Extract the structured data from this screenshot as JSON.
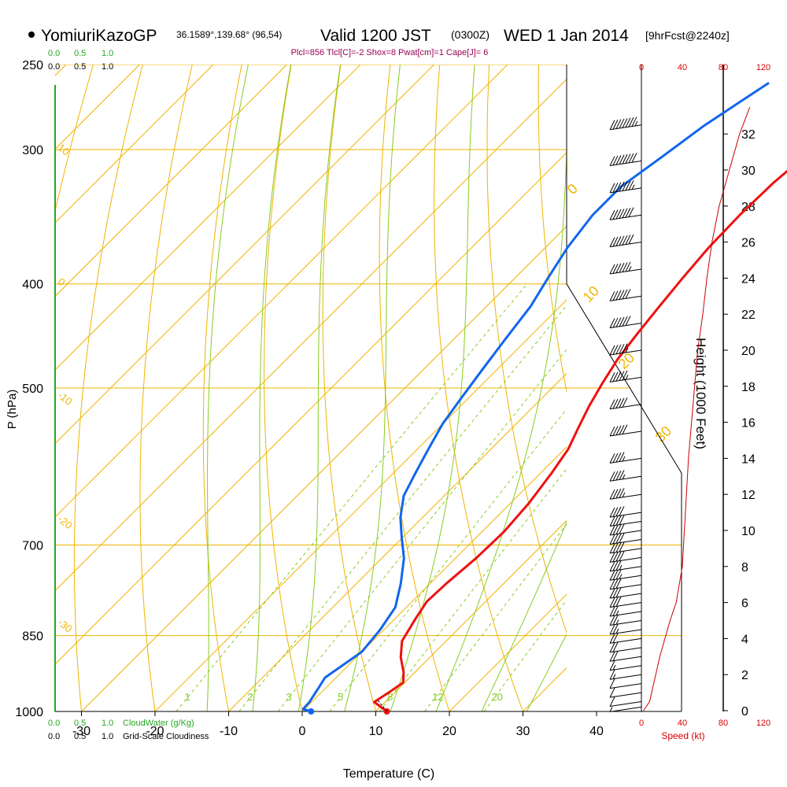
{
  "header": {
    "station": "YomiuriKazoGP",
    "location": "36.1589°,139.68° (96,54)",
    "valid": "Valid 1200 JST",
    "utc": "(0300Z)",
    "date": "WED 1 Jan 2014",
    "forecast": "[9hrFcst@2240z]",
    "indices": "Plcl=856 Tlcl[C]=-2 Shox=8 Pwat[cm]=1 Cape[J]= 6"
  },
  "cloud_scale": {
    "ticks": [
      "0.0",
      "0.5",
      "1.0"
    ],
    "water_label": "CloudWater (g/Kg)",
    "cloudiness_label": "Grid-Scale Cloudiness"
  },
  "speed_scale": {
    "ticks": [
      "0",
      "40",
      "80",
      "120"
    ],
    "label": "Speed (kt)"
  },
  "colors": {
    "temperature": "#ee1111",
    "dewpoint": "#1166ee",
    "isotherm": "#f0b400",
    "dry_adiabat": "#f0b400",
    "moist_adiabat": "#88cc22",
    "mixing_ratio": "#88cc22",
    "cloud": "#22aa22",
    "speed": "#cc0000"
  },
  "chart_data": {
    "type": "line",
    "title": "Valid 1200 JST (0300Z) WED 1 Jan 2014",
    "xlabel": "Temperature (C)",
    "ylabel": "P (hPa)",
    "right_ylabel": "Height (1000 Feet)",
    "xlim": [
      -35,
      35
    ],
    "pressure_range": [
      1000,
      250
    ],
    "x_ticks": [
      "-30",
      "-20",
      "-10",
      "0",
      "10",
      "20",
      "30",
      "40"
    ],
    "pressure_ticks": [
      "250",
      "300",
      "400",
      "500",
      "700",
      "850",
      "1000"
    ],
    "height_ticks": [
      "0",
      "2",
      "4",
      "6",
      "8",
      "10",
      "12",
      "14",
      "16",
      "18",
      "20",
      "22",
      "24",
      "26",
      "28",
      "30",
      "32"
    ],
    "dry_adiabat_labels": [
      "10",
      "0",
      "-10",
      "-20",
      "-30"
    ],
    "dry_adiabat_labels_right": [
      "0",
      "10",
      "20",
      "30"
    ],
    "mixing_ratio_labels": [
      "1",
      "2",
      "3",
      "5",
      "8",
      "12",
      "20"
    ],
    "series": [
      {
        "name": "Temperature",
        "points": [
          [
            11.5,
            1000
          ],
          [
            8.5,
            980
          ],
          [
            9.2,
            960
          ],
          [
            9.8,
            940
          ],
          [
            8.5,
            920
          ],
          [
            6,
            890
          ],
          [
            4,
            860
          ],
          [
            2.8,
            820
          ],
          [
            2,
            790
          ],
          [
            2.2,
            760
          ],
          [
            2.8,
            720
          ],
          [
            3,
            680
          ],
          [
            2.5,
            640
          ],
          [
            1.5,
            600
          ],
          [
            0.5,
            570
          ],
          [
            -1,
            545
          ],
          [
            -2.5,
            520
          ],
          [
            -3.8,
            495
          ],
          [
            -5,
            470
          ],
          [
            -5.8,
            445
          ],
          [
            -6.5,
            420
          ],
          [
            -7.2,
            395
          ],
          [
            -7.8,
            370
          ],
          [
            -8,
            345
          ],
          [
            -7.8,
            322
          ],
          [
            -7,
            300
          ],
          [
            -5.8,
            280
          ],
          [
            -4,
            260
          ]
        ]
      },
      {
        "name": "Dewpoint",
        "points": [
          [
            1.2,
            1000
          ],
          [
            -0.2,
            995
          ],
          [
            -0.3,
            980
          ],
          [
            -1,
            950
          ],
          [
            -1.5,
            930
          ],
          [
            0,
            880
          ],
          [
            -0.5,
            840
          ],
          [
            -1.5,
            800
          ],
          [
            -4,
            760
          ],
          [
            -7,
            720
          ],
          [
            -10,
            690
          ],
          [
            -13,
            660
          ],
          [
            -15.5,
            630
          ],
          [
            -17,
            600
          ],
          [
            -18.5,
            570
          ],
          [
            -20,
            540
          ],
          [
            -21,
            510
          ],
          [
            -22,
            480
          ],
          [
            -23,
            450
          ],
          [
            -24,
            420
          ],
          [
            -25.5,
            395
          ],
          [
            -27,
            370
          ],
          [
            -28,
            345
          ],
          [
            -28,
            325
          ],
          [
            -26.5,
            305
          ],
          [
            -25,
            285
          ],
          [
            -23,
            268
          ],
          [
            -22,
            260
          ]
        ]
      }
    ],
    "wind_speed_profile_kt": [
      [
        2,
        0
      ],
      [
        8,
        0.5
      ],
      [
        10,
        1
      ],
      [
        12,
        1.5
      ],
      [
        14,
        2
      ],
      [
        18,
        3
      ],
      [
        23,
        4
      ],
      [
        28,
        5
      ],
      [
        34,
        6
      ],
      [
        37,
        7
      ],
      [
        40,
        8
      ],
      [
        42,
        10
      ],
      [
        44,
        12
      ],
      [
        46,
        14
      ],
      [
        49,
        16
      ],
      [
        52,
        18
      ],
      [
        55,
        20
      ],
      [
        60,
        22
      ],
      [
        64,
        24
      ],
      [
        69,
        26
      ],
      [
        76,
        28
      ],
      [
        86,
        30
      ],
      [
        96,
        32
      ],
      [
        106,
        33.5
      ]
    ],
    "wind_barbs": [
      {
        "height_kft": 0.2,
        "speed_kt": 5
      },
      {
        "height_kft": 0.5,
        "speed_kt": 10
      },
      {
        "height_kft": 1,
        "speed_kt": 10
      },
      {
        "height_kft": 1.5,
        "speed_kt": 10
      },
      {
        "height_kft": 2,
        "speed_kt": 15
      },
      {
        "height_kft": 2.5,
        "speed_kt": 15
      },
      {
        "height_kft": 3,
        "speed_kt": 20
      },
      {
        "height_kft": 3.5,
        "speed_kt": 20
      },
      {
        "height_kft": 4,
        "speed_kt": 20
      },
      {
        "height_kft": 4.5,
        "speed_kt": 25
      },
      {
        "height_kft": 5,
        "speed_kt": 25
      },
      {
        "height_kft": 5.5,
        "speed_kt": 25
      },
      {
        "height_kft": 6,
        "speed_kt": 30
      },
      {
        "height_kft": 6.5,
        "speed_kt": 30
      },
      {
        "height_kft": 7,
        "speed_kt": 30
      },
      {
        "height_kft": 7.5,
        "speed_kt": 35
      },
      {
        "height_kft": 8,
        "speed_kt": 35
      },
      {
        "height_kft": 8.5,
        "speed_kt": 40
      },
      {
        "height_kft": 9,
        "speed_kt": 40
      },
      {
        "height_kft": 9.5,
        "speed_kt": 40
      },
      {
        "height_kft": 10,
        "speed_kt": 40
      },
      {
        "height_kft": 10.5,
        "speed_kt": 40
      },
      {
        "height_kft": 11,
        "speed_kt": 40
      },
      {
        "height_kft": 12,
        "speed_kt": 45
      },
      {
        "height_kft": 13,
        "speed_kt": 45
      },
      {
        "height_kft": 14,
        "speed_kt": 45
      },
      {
        "height_kft": 15.5,
        "speed_kt": 50
      },
      {
        "height_kft": 17,
        "speed_kt": 50
      },
      {
        "height_kft": 18.5,
        "speed_kt": 55
      },
      {
        "height_kft": 20,
        "speed_kt": 55
      },
      {
        "height_kft": 21.5,
        "speed_kt": 60
      },
      {
        "height_kft": 23,
        "speed_kt": 60
      },
      {
        "height_kft": 24.5,
        "speed_kt": 65
      },
      {
        "height_kft": 26,
        "speed_kt": 70
      },
      {
        "height_kft": 27.5,
        "speed_kt": 70
      },
      {
        "height_kft": 29,
        "speed_kt": 75
      },
      {
        "height_kft": 30.5,
        "speed_kt": 80
      },
      {
        "height_kft": 32.5,
        "speed_kt": 85
      }
    ],
    "surface_parcel": {
      "temperature": 11.5,
      "dewpoint": 1.2
    },
    "grid": true,
    "legend": "none"
  }
}
